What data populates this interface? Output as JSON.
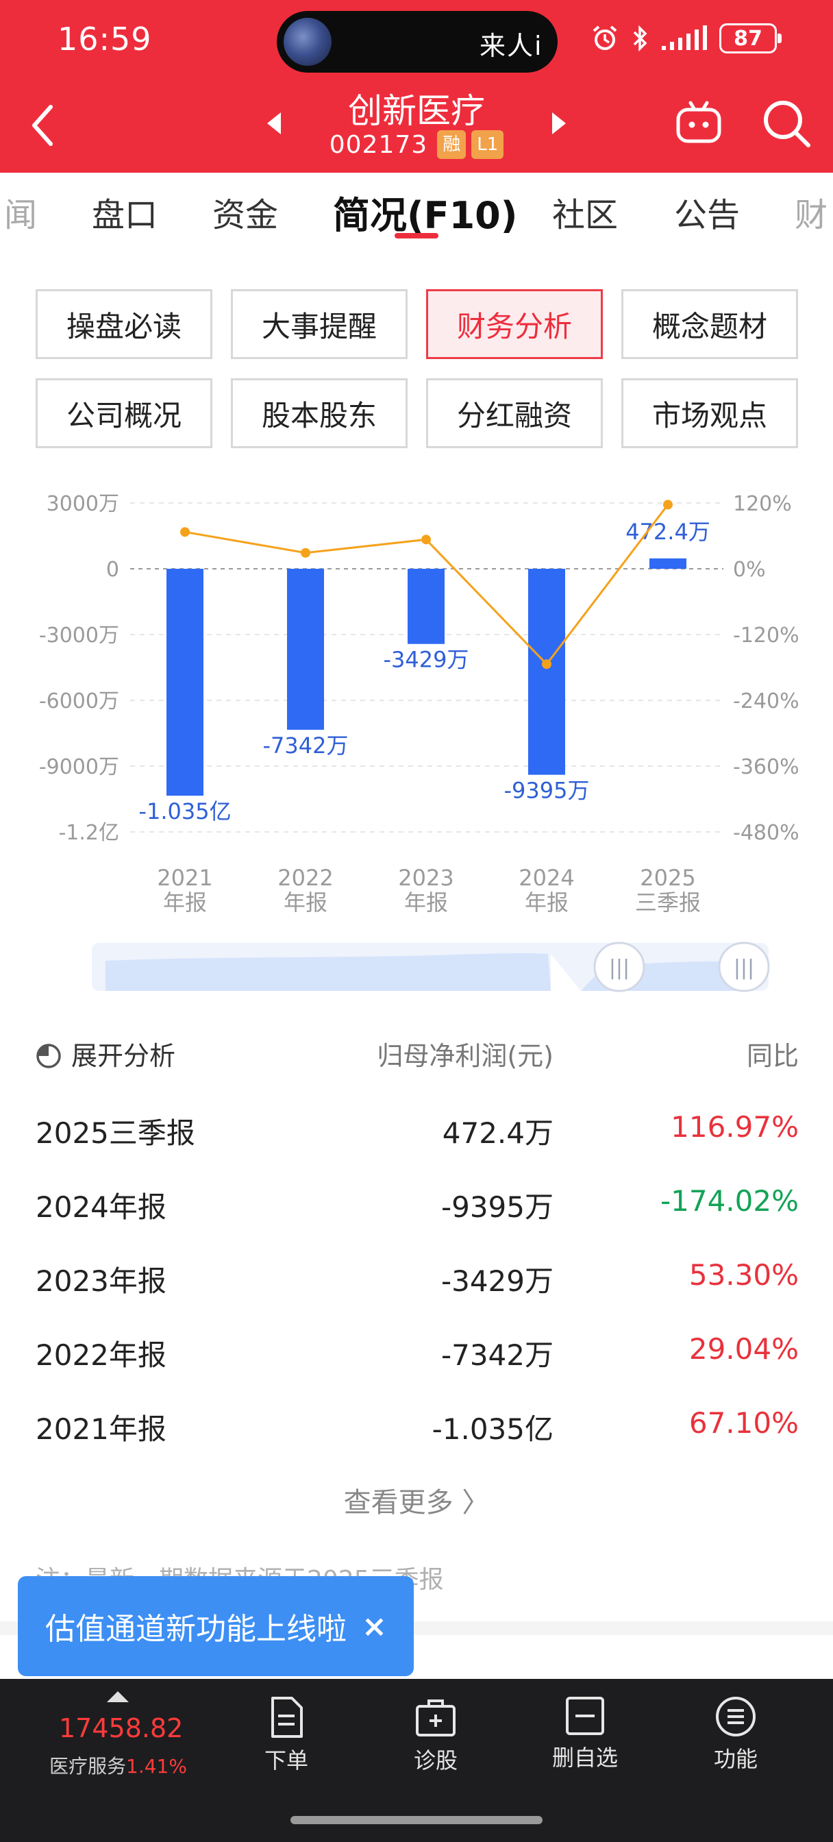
{
  "status_bar": {
    "time": "16:59",
    "island_text": "来人i",
    "battery": "87"
  },
  "header": {
    "stock_name": "创新医疗",
    "stock_code": "002173",
    "tags": [
      "融",
      "L1"
    ],
    "colors": {
      "bg": "#ee2d3c",
      "tag": "#f2a24a"
    }
  },
  "tabs": [
    "闻",
    "盘口",
    "资金",
    "简况(F10)",
    "社区",
    "公告",
    "财"
  ],
  "active_tab": "简况(F10)",
  "grid_buttons": [
    "操盘必读",
    "大事提醒",
    "财务分析",
    "概念题材",
    "公司概况",
    "股本股东",
    "分红融资",
    "市场观点"
  ],
  "active_grid": "财务分析",
  "chart_data": {
    "type": "bar",
    "categories": [
      [
        "2021",
        "年报"
      ],
      [
        "2022",
        "年报"
      ],
      [
        "2023",
        "年报"
      ],
      [
        "2024",
        "年报"
      ],
      [
        "2025",
        "三季报"
      ]
    ],
    "series": [
      {
        "values": [
          -10350,
          -7342,
          -3429,
          -9395,
          472.4
        ],
        "labels": [
          "-1.035亿",
          "-7342万",
          "-3429万",
          "-9395万",
          "472.4万"
        ],
        "color": "#2f6af5",
        "axis": "left"
      },
      {
        "values": [
          67.1,
          29.04,
          53.3,
          -174.02,
          116.97
        ],
        "color": "#f5a21b",
        "axis": "right",
        "type": "line"
      }
    ],
    "left_ticks": [
      "3000万",
      "0",
      "-3000万",
      "-6000万",
      "-9000万",
      "-1.2亿"
    ],
    "left_tick_values": [
      3000,
      0,
      -3000,
      -6000,
      -9000,
      -12000
    ],
    "right_ticks": [
      "120%",
      "0%",
      "-120%",
      "-240%",
      "-360%",
      "-480%"
    ],
    "right_tick_values": [
      120,
      0,
      -120,
      -240,
      -360,
      -480
    ],
    "ylim_left": [
      -12000,
      3000
    ],
    "ylim_right": [
      -480,
      120
    ]
  },
  "slider": {
    "handle_icon": "|||"
  },
  "table": {
    "expand_label": "展开分析",
    "col_value": "归母净利润(元)",
    "col_yoy": "同比",
    "rows": [
      {
        "period": "2025三季报",
        "value": "472.4万",
        "yoy": "116.97%",
        "trend": "up"
      },
      {
        "period": "2024年报",
        "value": "-9395万",
        "yoy": "-174.02%",
        "trend": "down"
      },
      {
        "period": "2023年报",
        "value": "-3429万",
        "yoy": "53.30%",
        "trend": "up"
      },
      {
        "period": "2022年报",
        "value": "-7342万",
        "yoy": "29.04%",
        "trend": "up"
      },
      {
        "period": "2021年报",
        "value": "-1.035亿",
        "yoy": "67.10%",
        "trend": "up"
      }
    ],
    "more_label": "查看更多 〉",
    "note": "注：最新一期数据来源于2025三季报"
  },
  "toast": {
    "text": "估值通道新功能上线啦",
    "close": "×"
  },
  "bottom_bar": {
    "index_value": "17458.82",
    "index_name": "医疗服务",
    "index_change": "1.41%",
    "items": [
      "下单",
      "诊股",
      "删自选",
      "功能"
    ]
  }
}
